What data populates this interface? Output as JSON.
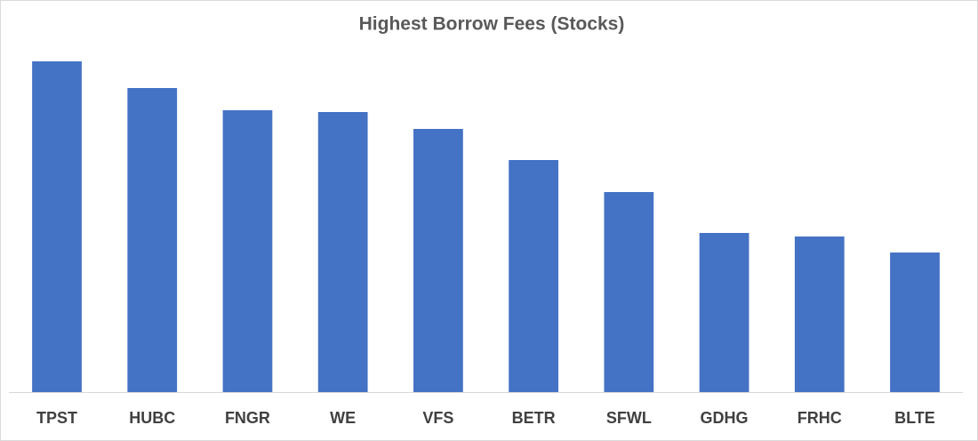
{
  "chart_data": {
    "type": "bar",
    "title": "Highest Borrow Fees (Stocks)",
    "categories": [
      "TPST",
      "HUBC",
      "FNGR",
      "WE",
      "VFS",
      "BETR",
      "SFWL",
      "GDHG",
      "FRHC",
      "BLTE"
    ],
    "values": [
      372,
      342,
      317,
      315,
      296,
      261,
      225,
      179,
      175,
      157
    ],
    "color": "#4472c4",
    "ylim": [
      0,
      400
    ]
  }
}
